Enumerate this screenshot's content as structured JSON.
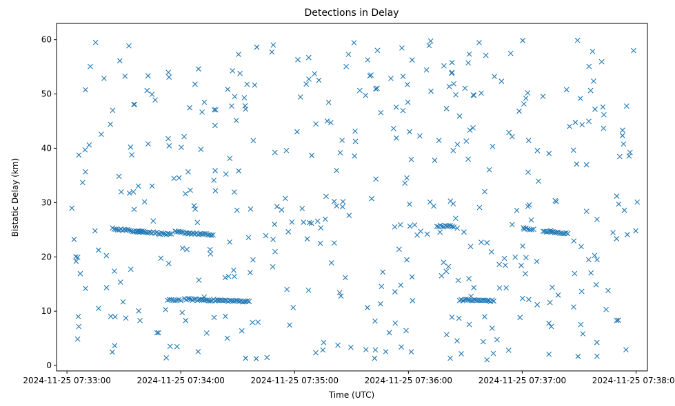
{
  "chart_data": {
    "type": "scatter",
    "title": "Detections in Delay",
    "xlabel": "Time (UTC)",
    "ylabel": "Bistatic Delay (km)",
    "marker": "x",
    "color": "#1f77b4",
    "grid": false,
    "xlim_seconds_from": "2024-11-25 07:33:00",
    "x_ticks": [
      {
        "label": "2024-11-25 07:33:00",
        "t": 0
      },
      {
        "label": "2024-11-25 07:34:00",
        "t": 60
      },
      {
        "label": "2024-11-25 07:35:00",
        "t": 120
      },
      {
        "label": "2024-11-25 07:36:00",
        "t": 180
      },
      {
        "label": "2024-11-25 07:37:00",
        "t": 240
      },
      {
        "label": "2024-11-25 07:38:00",
        "t": 300
      }
    ],
    "xlim": [
      -5.5,
      306
    ],
    "ylim": [
      -1,
      63
    ],
    "y_ticks": [
      0,
      10,
      20,
      30,
      40,
      50,
      60
    ],
    "tracks": [
      {
        "t_start": 24,
        "t_end": 40,
        "y_start": 25.2,
        "y_end": 24.6
      },
      {
        "t_start": 37,
        "t_end": 55,
        "y_start": 24.8,
        "y_end": 24.1
      },
      {
        "t_start": 57,
        "t_end": 77,
        "y_start": 24.6,
        "y_end": 24.0
      },
      {
        "t_start": 53,
        "t_end": 60,
        "y_start": 12.0,
        "y_end": 12.1
      },
      {
        "t_start": 62,
        "t_end": 96,
        "y_start": 12.2,
        "y_end": 11.8
      },
      {
        "t_start": 207,
        "t_end": 225,
        "y_start": 12.1,
        "y_end": 11.9
      },
      {
        "t_start": 241,
        "t_end": 246,
        "y_start": 25.2,
        "y_end": 25.0
      },
      {
        "t_start": 251,
        "t_end": 264,
        "y_start": 24.7,
        "y_end": 24.3
      },
      {
        "t_start": 195,
        "t_end": 204,
        "y_start": 25.7,
        "y_end": 25.6
      }
    ],
    "scatter_points_count": 430
  }
}
